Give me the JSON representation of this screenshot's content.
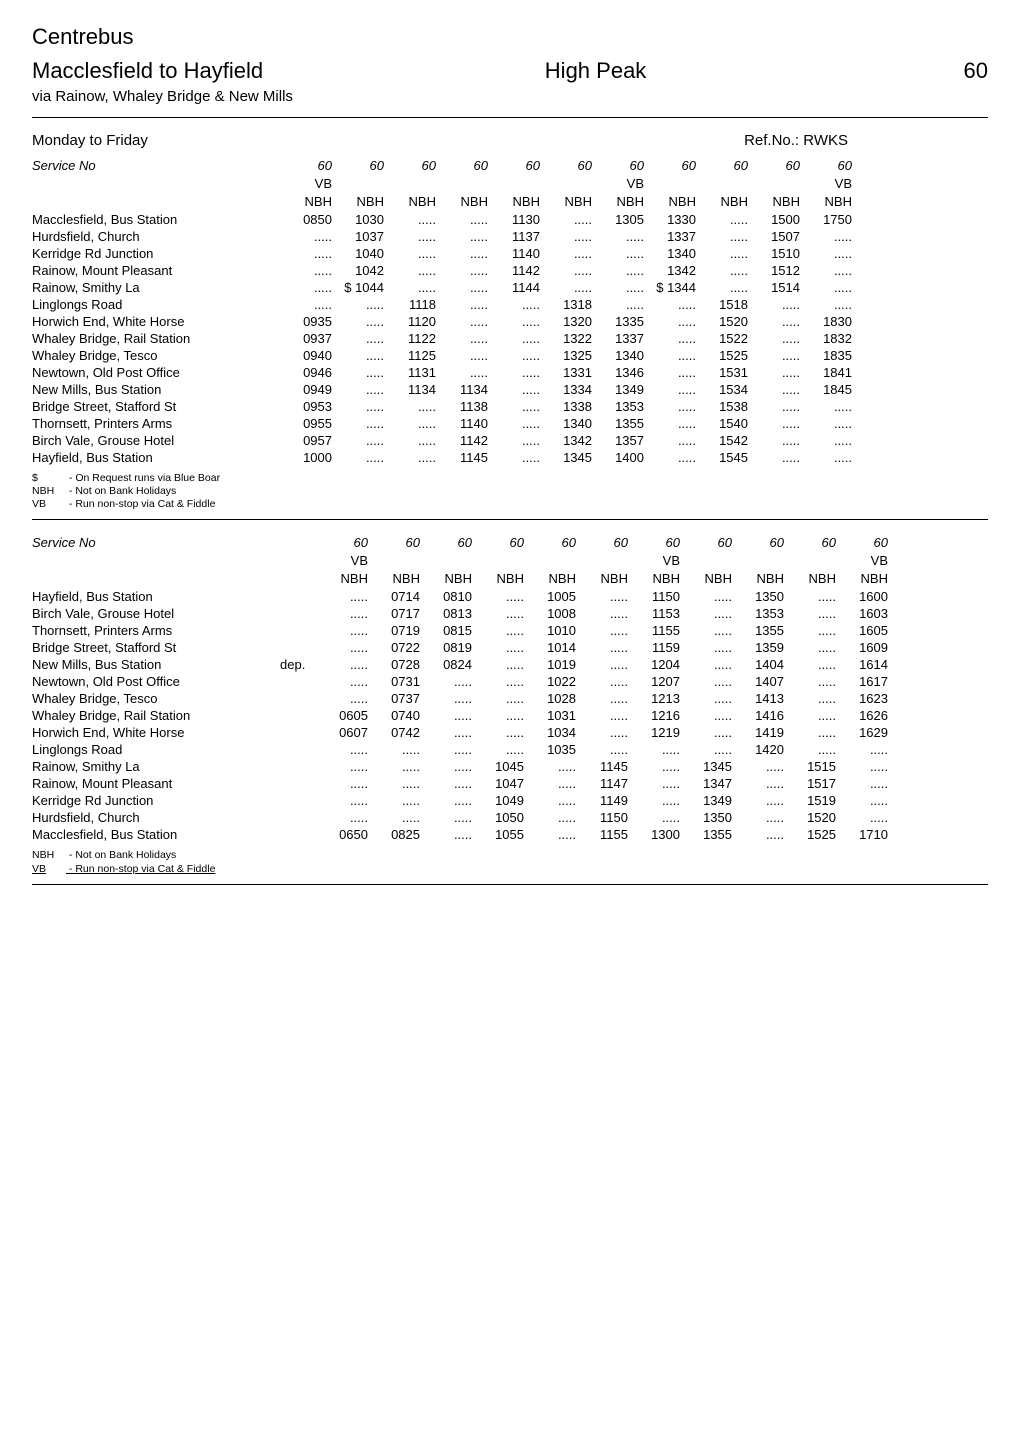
{
  "operator": "Centrebus",
  "route_title": "Macclesfield to Hayfield",
  "region": "High Peak",
  "route_number": "60",
  "via": "via Rainow, Whaley Bridge & New Mills",
  "block1": {
    "day_label": "Monday to Friday",
    "ref_label": "Ref.No.: RWKS",
    "service_label": "Service No",
    "service_nos": [
      "60",
      "60",
      "60",
      "60",
      "60",
      "60",
      "60",
      "60",
      "60",
      "60",
      "60"
    ],
    "code_row1": [
      "VB",
      "",
      "",
      "",
      "",
      "",
      "VB",
      "",
      "",
      "",
      "VB"
    ],
    "code_row2": [
      "NBH",
      "NBH",
      "NBH",
      "NBH",
      "NBH",
      "NBH",
      "NBH",
      "NBH",
      "NBH",
      "NBH",
      "NBH"
    ],
    "rows": [
      {
        "stop": "Macclesfield, Bus Station",
        "t": [
          "0850",
          "1030",
          ".....",
          ".....",
          "1130",
          ".....",
          "1305",
          "1330",
          ".....",
          "1500",
          "1750"
        ]
      },
      {
        "stop": "Hurdsfield, Church",
        "t": [
          ".....",
          "1037",
          ".....",
          ".....",
          "1137",
          ".....",
          ".....",
          "1337",
          ".....",
          "1507",
          "....."
        ]
      },
      {
        "stop": "Kerridge Rd Junction",
        "t": [
          ".....",
          "1040",
          ".....",
          ".....",
          "1140",
          ".....",
          ".....",
          "1340",
          ".....",
          "1510",
          "....."
        ]
      },
      {
        "stop": "Rainow, Mount Pleasant",
        "t": [
          ".....",
          "1042",
          ".....",
          ".....",
          "1142",
          ".....",
          ".....",
          "1342",
          ".....",
          "1512",
          "....."
        ]
      },
      {
        "stop": "Rainow, Smithy La",
        "t": [
          ".....",
          "$ 1044",
          ".....",
          ".....",
          "1144",
          ".....",
          ".....",
          "$ 1344",
          ".....",
          "1514",
          "....."
        ]
      },
      {
        "stop": "Linglongs Road",
        "t": [
          ".....",
          ".....",
          "1118",
          ".....",
          ".....",
          "1318",
          ".....",
          ".....",
          "1518",
          ".....",
          "....."
        ]
      },
      {
        "stop": "Horwich End, White Horse",
        "t": [
          "0935",
          ".....",
          "1120",
          ".....",
          ".....",
          "1320",
          "1335",
          ".....",
          "1520",
          ".....",
          "1830"
        ]
      },
      {
        "stop": "Whaley Bridge, Rail Station",
        "t": [
          "0937",
          ".....",
          "1122",
          ".....",
          ".....",
          "1322",
          "1337",
          ".....",
          "1522",
          ".....",
          "1832"
        ]
      },
      {
        "stop": "Whaley Bridge, Tesco",
        "t": [
          "0940",
          ".....",
          "1125",
          ".....",
          ".....",
          "1325",
          "1340",
          ".....",
          "1525",
          ".....",
          "1835"
        ]
      },
      {
        "stop": "Newtown, Old Post Office",
        "t": [
          "0946",
          ".....",
          "1131",
          ".....",
          ".....",
          "1331",
          "1346",
          ".....",
          "1531",
          ".....",
          "1841"
        ]
      },
      {
        "stop": "New Mills, Bus Station",
        "t": [
          "0949",
          ".....",
          "1134",
          "1134",
          ".....",
          "1334",
          "1349",
          ".....",
          "1534",
          ".....",
          "1845"
        ]
      },
      {
        "stop": "Bridge Street, Stafford St",
        "t": [
          "0953",
          ".....",
          ".....",
          "1138",
          ".....",
          "1338",
          "1353",
          ".....",
          "1538",
          ".....",
          "....."
        ]
      },
      {
        "stop": "Thornsett, Printers Arms",
        "t": [
          "0955",
          ".....",
          ".....",
          "1140",
          ".....",
          "1340",
          "1355",
          ".....",
          "1540",
          ".....",
          "....."
        ]
      },
      {
        "stop": "Birch Vale, Grouse Hotel",
        "t": [
          "0957",
          ".....",
          ".....",
          "1142",
          ".....",
          "1342",
          "1357",
          ".....",
          "1542",
          ".....",
          "....."
        ]
      },
      {
        "stop": "Hayfield, Bus Station",
        "t": [
          "1000",
          ".....",
          ".....",
          "1145",
          ".....",
          "1345",
          "1400",
          ".....",
          "1545",
          ".....",
          "....."
        ]
      }
    ],
    "notes": [
      {
        "k": "$",
        "v": "- On Request runs via Blue Boar"
      },
      {
        "k": "NBH",
        "v": "- Not on Bank Holidays"
      },
      {
        "k": "VB",
        "v": "- Run non-stop via Cat & Fiddle"
      }
    ]
  },
  "block2": {
    "service_label": "Service No",
    "service_nos": [
      "60",
      "60",
      "60",
      "60",
      "60",
      "60",
      "60",
      "60",
      "60",
      "60",
      "60"
    ],
    "code_row1": [
      "VB",
      "",
      "",
      "",
      "",
      "",
      "VB",
      "",
      "",
      "",
      "VB"
    ],
    "code_row2": [
      "NBH",
      "NBH",
      "NBH",
      "NBH",
      "NBH",
      "NBH",
      "NBH",
      "NBH",
      "NBH",
      "NBH",
      "NBH"
    ],
    "rows": [
      {
        "stop": "Hayfield, Bus Station",
        "dep": "",
        "t": [
          ".....",
          "0714",
          "0810",
          ".....",
          "1005",
          ".....",
          "1150",
          ".....",
          "1350",
          ".....",
          "1600"
        ]
      },
      {
        "stop": "Birch Vale, Grouse Hotel",
        "dep": "",
        "t": [
          ".....",
          "0717",
          "0813",
          ".....",
          "1008",
          ".....",
          "1153",
          ".....",
          "1353",
          ".....",
          "1603"
        ]
      },
      {
        "stop": "Thornsett, Printers Arms",
        "dep": "",
        "t": [
          ".....",
          "0719",
          "0815",
          ".....",
          "1010",
          ".....",
          "1155",
          ".....",
          "1355",
          ".....",
          "1605"
        ]
      },
      {
        "stop": "Bridge Street, Stafford St",
        "dep": "",
        "t": [
          ".....",
          "0722",
          "0819",
          ".....",
          "1014",
          ".....",
          "1159",
          ".....",
          "1359",
          ".....",
          "1609"
        ]
      },
      {
        "stop": "New Mills, Bus Station",
        "dep": "dep.",
        "t": [
          ".....",
          "0728",
          "0824",
          ".....",
          "1019",
          ".....",
          "1204",
          ".....",
          "1404",
          ".....",
          "1614"
        ]
      },
      {
        "stop": "Newtown, Old Post Office",
        "dep": "",
        "t": [
          ".....",
          "0731",
          ".....",
          ".....",
          "1022",
          ".....",
          "1207",
          ".....",
          "1407",
          ".....",
          "1617"
        ]
      },
      {
        "stop": "Whaley Bridge, Tesco",
        "dep": "",
        "t": [
          ".....",
          "0737",
          ".....",
          ".....",
          "1028",
          ".....",
          "1213",
          ".....",
          "1413",
          ".....",
          "1623"
        ]
      },
      {
        "stop": "Whaley Bridge, Rail Station",
        "dep": "",
        "t": [
          "0605",
          "0740",
          ".....",
          ".....",
          "1031",
          ".....",
          "1216",
          ".....",
          "1416",
          ".....",
          "1626"
        ]
      },
      {
        "stop": "Horwich End, White Horse",
        "dep": "",
        "t": [
          "0607",
          "0742",
          ".....",
          ".....",
          "1034",
          ".....",
          "1219",
          ".....",
          "1419",
          ".....",
          "1629"
        ]
      },
      {
        "stop": "Linglongs Road",
        "dep": "",
        "t": [
          ".....",
          ".....",
          ".....",
          ".....",
          "1035",
          ".....",
          ".....",
          ".....",
          "1420",
          ".....",
          "....."
        ]
      },
      {
        "stop": "Rainow, Smithy La",
        "dep": "",
        "t": [
          ".....",
          ".....",
          ".....",
          "1045",
          ".....",
          "1145",
          ".....",
          "1345",
          ".....",
          "1515",
          "....."
        ]
      },
      {
        "stop": "Rainow, Mount Pleasant",
        "dep": "",
        "t": [
          ".....",
          ".....",
          ".....",
          "1047",
          ".....",
          "1147",
          ".....",
          "1347",
          ".....",
          "1517",
          "....."
        ]
      },
      {
        "stop": "Kerridge Rd Junction",
        "dep": "",
        "t": [
          ".....",
          ".....",
          ".....",
          "1049",
          ".....",
          "1149",
          ".....",
          "1349",
          ".....",
          "1519",
          "....."
        ]
      },
      {
        "stop": "Hurdsfield, Church",
        "dep": "",
        "t": [
          ".....",
          ".....",
          ".....",
          "1050",
          ".....",
          "1150",
          ".....",
          "1350",
          ".....",
          "1520",
          "....."
        ]
      },
      {
        "stop": "Macclesfield, Bus Station",
        "dep": "",
        "t": [
          "0650",
          "0825",
          ".....",
          "1055",
          ".....",
          "1155",
          "1300",
          "1355",
          ".....",
          "1525",
          "1710"
        ]
      }
    ],
    "notes": [
      {
        "k": "NBH",
        "v": "- Not on Bank Holidays",
        "u": false
      },
      {
        "k": "VB",
        "v": "- Run non-stop via Cat & Fiddle",
        "u": true
      }
    ]
  }
}
